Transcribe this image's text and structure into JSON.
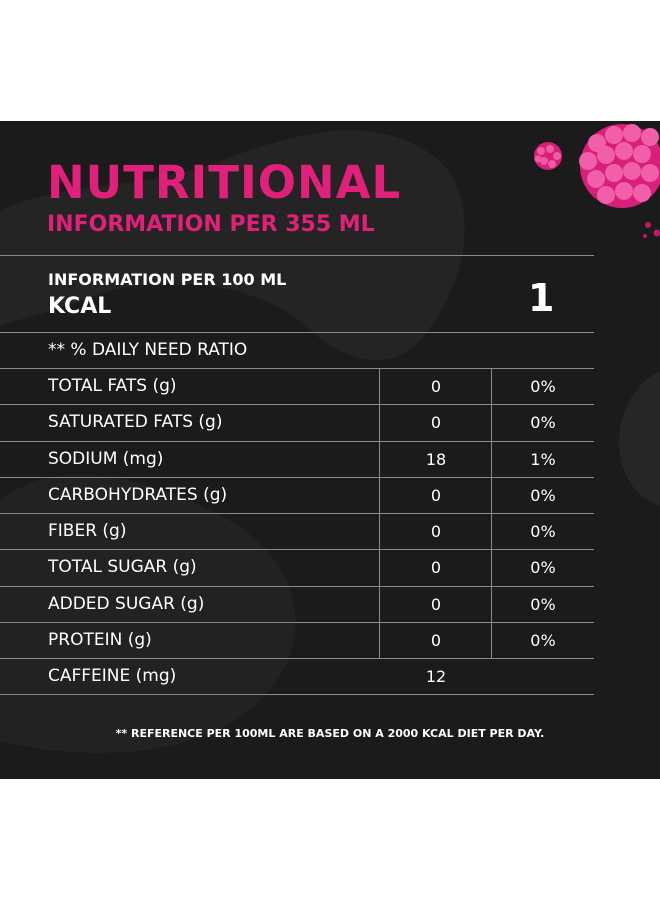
{
  "colors": {
    "panel": "#1b1b1b",
    "accent": "#e0207a",
    "text": "#ffffff",
    "rule": "#8a8a8a"
  },
  "header": {
    "title_line1": "NUTRITIONAL",
    "title_line2": "INFORMATION PER 355 ML"
  },
  "energy": {
    "label_line1": "INFORMATION PER 100 ML",
    "label_line2": "KCAL",
    "value": "1"
  },
  "daily_need_label": "** % DAILY NEED RATIO",
  "rows": [
    {
      "label": "TOTAL FATS (g)",
      "value": "0",
      "percent": "0%"
    },
    {
      "label": "SATURATED FATS (g)",
      "value": "0",
      "percent": "0%"
    },
    {
      "label": "SODIUM (mg)",
      "value": "18",
      "percent": "1%"
    },
    {
      "label": "CARBOHYDRATES (g)",
      "value": "0",
      "percent": "0%"
    },
    {
      "label": "FIBER (g)",
      "value": "0",
      "percent": "0%"
    },
    {
      "label": "TOTAL SUGAR (g)",
      "value": "0",
      "percent": "0%"
    },
    {
      "label": "ADDED SUGAR (g)",
      "value": "0",
      "percent": "0%"
    },
    {
      "label": "PROTEIN (g)",
      "value": "0",
      "percent": "0%"
    },
    {
      "label": "CAFFEINE (mg)",
      "value": "12",
      "percent": ""
    }
  ],
  "footnote": "** REFERENCE PER 100ML ARE BASED ON A 2000 KCAL DIET PER DAY.",
  "decoration": "raspberry-illustration"
}
